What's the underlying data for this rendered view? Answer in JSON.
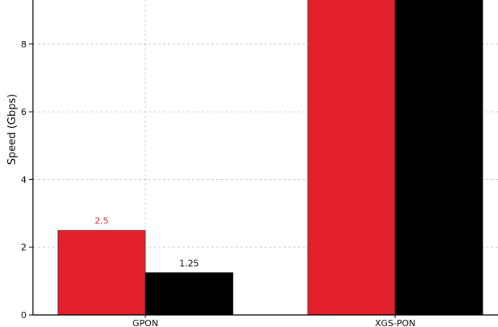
{
  "chart_data": {
    "type": "bar",
    "title": "",
    "xlabel": "",
    "ylabel": "Speed (Gbps)",
    "categories": [
      "GPON",
      "XGS-PON"
    ],
    "series": [
      {
        "values": [
          2.5,
          9.95
        ],
        "color": "#e2202b",
        "data_labels": [
          "2.5",
          ""
        ],
        "label_color": "#e2202b"
      },
      {
        "values": [
          1.25,
          9.95
        ],
        "color": "#000000",
        "data_labels": [
          "1.25",
          ""
        ],
        "label_color": "#000000"
      }
    ],
    "ylim": [
      0,
      9.3
    ],
    "yticks": [
      0,
      2,
      4,
      6,
      8
    ],
    "ytick_labels": [
      "0",
      "2",
      "4",
      "6",
      "8"
    ],
    "grid": true
  }
}
